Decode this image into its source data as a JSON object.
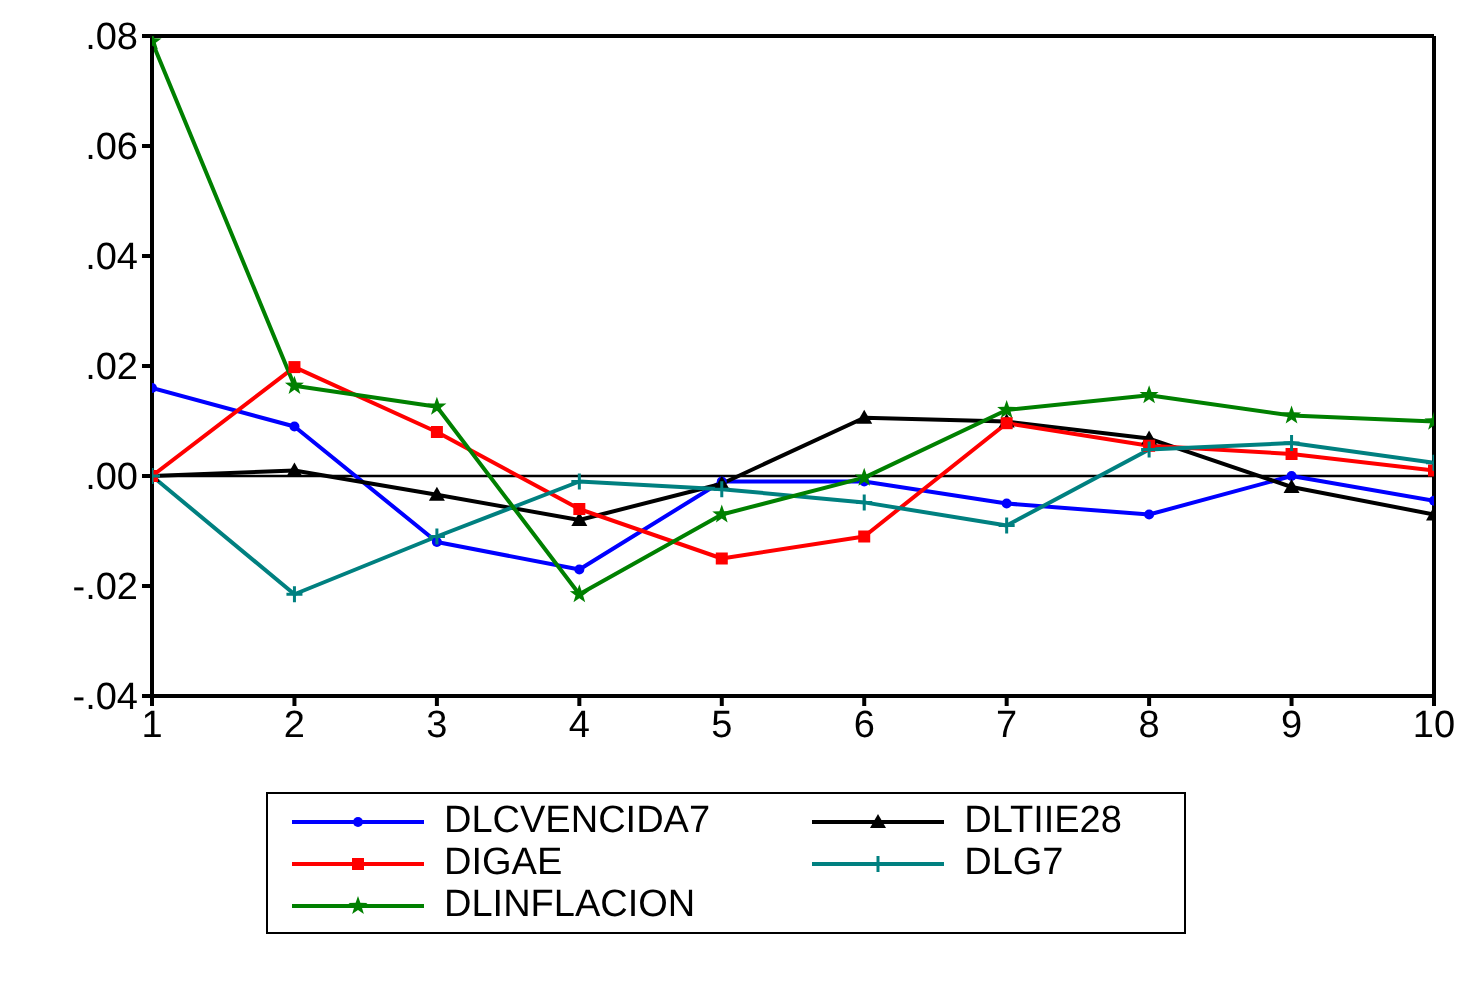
{
  "chart_data": {
    "type": "line",
    "x": [
      1,
      2,
      3,
      4,
      5,
      6,
      7,
      8,
      9,
      10
    ],
    "series": [
      {
        "name": "DLCVENCIDA7",
        "color": "#0000ff",
        "marker": "circle",
        "values": [
          0.016,
          0.009,
          -0.012,
          -0.017,
          -0.001,
          -0.001,
          -0.005,
          -0.007,
          0.0,
          -0.0045
        ]
      },
      {
        "name": "DLTIIE28",
        "color": "#000000",
        "marker": "triangle",
        "values": [
          0.0,
          0.001,
          -0.0034,
          -0.008,
          -0.0014,
          0.0106,
          0.0099,
          0.0068,
          -0.002,
          -0.007
        ]
      },
      {
        "name": "DIGAE",
        "color": "#ff0000",
        "marker": "square",
        "values": [
          0.0,
          0.0198,
          0.008,
          -0.006,
          -0.015,
          -0.011,
          0.0096,
          0.0055,
          0.004,
          0.001
        ]
      },
      {
        "name": "DLG7",
        "color": "#008080",
        "marker": "cross",
        "values": [
          0.0,
          -0.0215,
          -0.011,
          -0.001,
          -0.0024,
          -0.0048,
          -0.009,
          0.0048,
          0.006,
          0.0024
        ]
      },
      {
        "name": "DLINFLACION",
        "color": "#008000",
        "marker": "star",
        "values": [
          0.079,
          0.0164,
          0.0126,
          -0.0215,
          -0.007,
          -0.0003,
          0.012,
          0.0147,
          0.011,
          0.0099
        ]
      }
    ],
    "xlim": [
      1,
      10
    ],
    "xticks": [
      1,
      2,
      3,
      4,
      5,
      6,
      7,
      8,
      9,
      10
    ],
    "ylim": [
      -0.04,
      0.08
    ],
    "yticks": [
      {
        "value": -0.04,
        "label": "-.04"
      },
      {
        "value": -0.02,
        "label": "-.02"
      },
      {
        "value": 0,
        "label": ".00"
      },
      {
        "value": 0.02,
        "label": ".02"
      },
      {
        "value": 0.04,
        "label": ".04"
      },
      {
        "value": 0.06,
        "label": ".06"
      },
      {
        "value": 0.08,
        "label": ".08"
      }
    ],
    "ref_lines": [
      {
        "axis": "y",
        "value": 0,
        "color": "#000000"
      }
    ],
    "grid": false,
    "legend": "bottom",
    "line_style": "solid"
  }
}
